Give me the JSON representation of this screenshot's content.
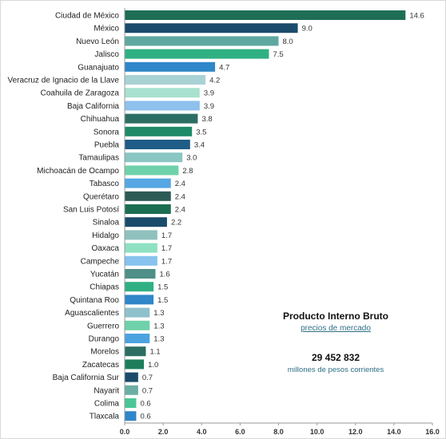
{
  "chart_data": {
    "type": "bar",
    "orientation": "horizontal",
    "categories": [
      "Ciudad de México",
      "México",
      "Nuevo León",
      "Jalisco",
      "Guanajuato",
      "Veracruz de Ignacio de la Llave",
      "Coahuila de Zaragoza",
      "Baja California",
      "Chihuahua",
      "Sonora",
      "Puebla",
      "Tamaulipas",
      "Michoacán de Ocampo",
      "Tabasco",
      "Querétaro",
      "San Luis Potosí",
      "Sinaloa",
      "Hidalgo",
      "Oaxaca",
      "Campeche",
      "Yucatán",
      "Chiapas",
      "Quintana Roo",
      "Aguascalientes",
      "Guerrero",
      "Durango",
      "Morelos",
      "Zacatecas",
      "Baja California Sur",
      "Nayarit",
      "Colima",
      "Tlaxcala"
    ],
    "values": [
      14.6,
      9.0,
      8.0,
      7.5,
      4.7,
      4.2,
      3.9,
      3.9,
      3.8,
      3.5,
      3.4,
      3.0,
      2.8,
      2.4,
      2.4,
      2.4,
      2.2,
      1.7,
      1.7,
      1.7,
      1.6,
      1.5,
      1.5,
      1.3,
      1.3,
      1.3,
      1.1,
      1.0,
      0.7,
      0.7,
      0.6,
      0.6
    ],
    "value_labels": [
      "14.6",
      "9.0",
      "8.0",
      "7.5",
      "4.7",
      "4.2",
      "3.9",
      "3.9",
      "3.8",
      "3.5",
      "3.4",
      "3.0",
      "2.8",
      "2.4",
      "2.4",
      "2.4",
      "2.2",
      "1.7",
      "1.7",
      "1.7",
      "1.6",
      "1.5",
      "1.5",
      "1.3",
      "1.3",
      "1.3",
      "1.1",
      "1.0",
      "0.7",
      "0.7",
      "0.6",
      "0.6"
    ],
    "bar_colors": [
      "#1e6e55",
      "#1b4b6b",
      "#5fa8a0",
      "#2fb083",
      "#2f86c8",
      "#a9d2d5",
      "#a8e1cf",
      "#8ec1ec",
      "#2c6e63",
      "#1f8a68",
      "#1f5c86",
      "#8ac6c3",
      "#6fd1aa",
      "#56a7e3",
      "#2c5a55",
      "#1b6e52",
      "#1a4b6b",
      "#8fc1be",
      "#8ee1c2",
      "#86c3ef",
      "#4e8f87",
      "#2fb083",
      "#2f86c8",
      "#8ec1cc",
      "#6fd1aa",
      "#4aa3df",
      "#2c6e63",
      "#1e7e5c",
      "#1a4b6b",
      "#6aaea4",
      "#49c796",
      "#2f86c8"
    ],
    "xlim": [
      0,
      16
    ],
    "xticks": [
      "0.0",
      "2.0",
      "4.0",
      "6.0",
      "8.0",
      "10.0",
      "12.0",
      "14.0",
      "16.0"
    ],
    "title": "",
    "xlabel": "",
    "ylabel": "",
    "grid": false,
    "legend": "none"
  },
  "info_box": {
    "title": "Producto Interno Bruto",
    "subtitle": "precios de mercado",
    "value": "29 452 832",
    "unit": "millones de pesos corrientes"
  }
}
